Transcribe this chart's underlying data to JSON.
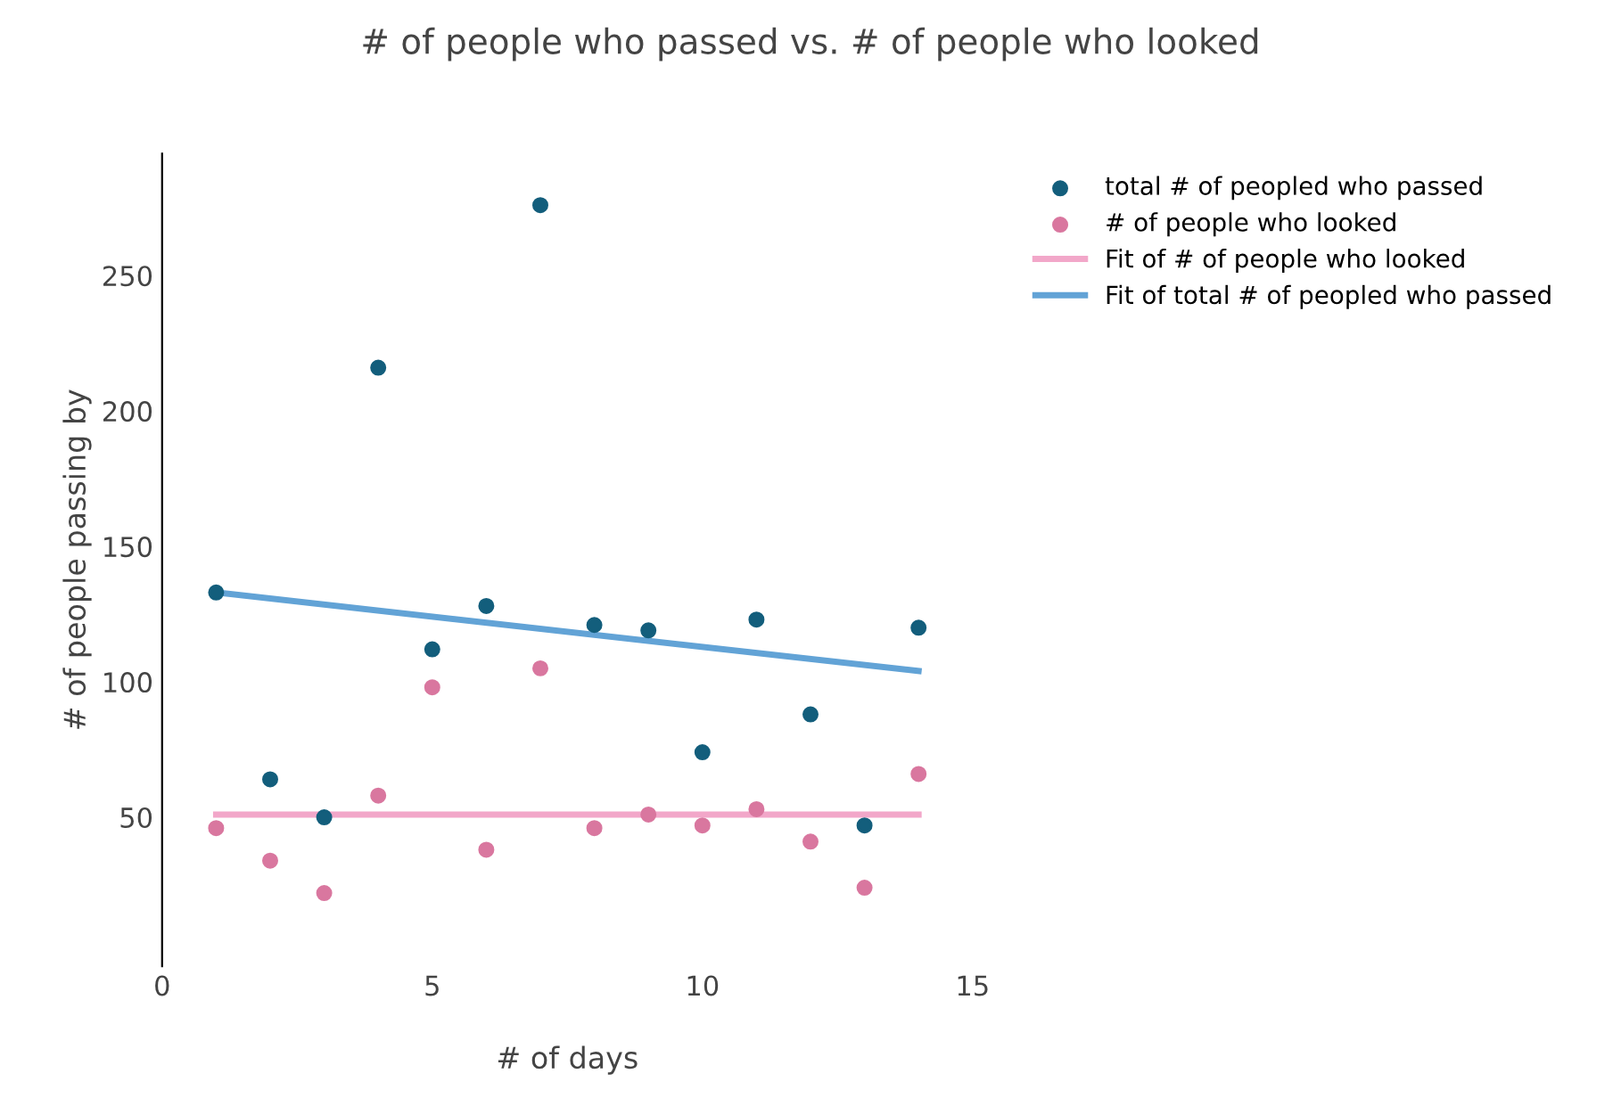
{
  "chart_data": {
    "type": "scatter",
    "title": "# of people who passed vs. # of people who looked",
    "xlabel": "# of days",
    "ylabel": "# of people passing by",
    "xlim": [
      0,
      15
    ],
    "xticks": [
      0,
      5,
      10,
      15
    ],
    "ylim": [
      -5,
      295
    ],
    "yticks": [
      50,
      100,
      150,
      200,
      250
    ],
    "grid": false,
    "legend": "top right",
    "series": [
      {
        "name": "total # of peopled who passed",
        "marker": "circle",
        "color": "#135e7c",
        "x": [
          1,
          2,
          3,
          4,
          5,
          6,
          7,
          8,
          9,
          10,
          11,
          12,
          13,
          14
        ],
        "values": [
          133,
          64,
          50,
          216,
          112,
          128,
          276,
          121,
          119,
          74,
          123,
          88,
          47,
          120
        ]
      },
      {
        "name": "# of people who looked",
        "marker": "circle",
        "color": "#d9779f",
        "x": [
          1,
          2,
          3,
          4,
          5,
          6,
          7,
          8,
          9,
          10,
          11,
          12,
          13,
          14
        ],
        "values": [
          46,
          34,
          22,
          58,
          98,
          38,
          105,
          46,
          51,
          47,
          53,
          41,
          24,
          66
        ]
      },
      {
        "name": "Fit of # of people who looked",
        "type": "line",
        "marker": "none",
        "color": "#f2a7c9",
        "x": [
          1,
          14
        ],
        "values": [
          51,
          51
        ]
      },
      {
        "name": "Fit of total # of peopled who passed",
        "type": "line",
        "marker": "none",
        "color": "#62a3d6",
        "x": [
          1,
          14
        ],
        "values": [
          133,
          104
        ]
      }
    ]
  }
}
